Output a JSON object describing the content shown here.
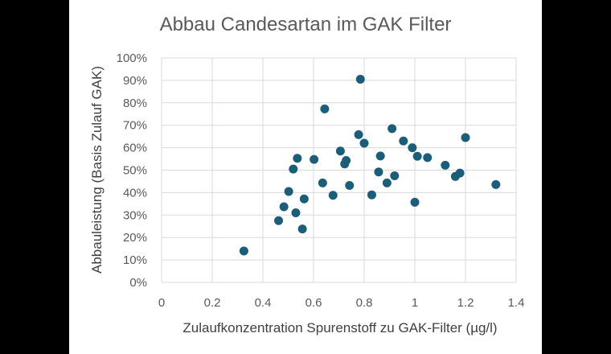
{
  "chart_data": {
    "type": "scatter",
    "title": "Abbau Candesartan  im GAK Filter",
    "xlabel": "Zulaufkonzentration Spurenstoff zu GAK-Filter  (µg/l)",
    "ylabel": "Abbauleistung (Basis Zulauf GAK)",
    "xlim": [
      0,
      1.4
    ],
    "ylim": [
      0,
      1.0
    ],
    "x_ticks": [
      0,
      0.2,
      0.4,
      0.6,
      0.8,
      1.0,
      1.2,
      1.4
    ],
    "x_tick_labels": [
      "0",
      "0.2",
      "0.4",
      "0.6",
      "0.8",
      "1",
      "1.2",
      "1.4"
    ],
    "y_ticks": [
      0,
      0.1,
      0.2,
      0.3,
      0.4,
      0.5,
      0.6,
      0.7,
      0.8,
      0.9,
      1.0
    ],
    "y_tick_labels": [
      "0%",
      "10%",
      "20%",
      "30%",
      "40%",
      "50%",
      "60%",
      "70%",
      "80%",
      "90%",
      "100%"
    ],
    "grid": true,
    "marker_color": "#1b5e7a",
    "points": [
      [
        0.325,
        0.14
      ],
      [
        0.462,
        0.275
      ],
      [
        0.483,
        0.337
      ],
      [
        0.502,
        0.405
      ],
      [
        0.52,
        0.505
      ],
      [
        0.53,
        0.31
      ],
      [
        0.536,
        0.553
      ],
      [
        0.556,
        0.238
      ],
      [
        0.563,
        0.372
      ],
      [
        0.602,
        0.548
      ],
      [
        0.636,
        0.443
      ],
      [
        0.644,
        0.773
      ],
      [
        0.677,
        0.388
      ],
      [
        0.706,
        0.585
      ],
      [
        0.723,
        0.528
      ],
      [
        0.729,
        0.543
      ],
      [
        0.742,
        0.432
      ],
      [
        0.778,
        0.658
      ],
      [
        0.785,
        0.905
      ],
      [
        0.8,
        0.62
      ],
      [
        0.83,
        0.39
      ],
      [
        0.857,
        0.492
      ],
      [
        0.864,
        0.563
      ],
      [
        0.89,
        0.443
      ],
      [
        0.91,
        0.685
      ],
      [
        0.92,
        0.475
      ],
      [
        0.955,
        0.63
      ],
      [
        0.99,
        0.6
      ],
      [
        1.0,
        0.357
      ],
      [
        1.01,
        0.562
      ],
      [
        1.05,
        0.556
      ],
      [
        1.12,
        0.522
      ],
      [
        1.16,
        0.472
      ],
      [
        1.178,
        0.487
      ],
      [
        1.2,
        0.645
      ],
      [
        1.32,
        0.436
      ]
    ]
  }
}
